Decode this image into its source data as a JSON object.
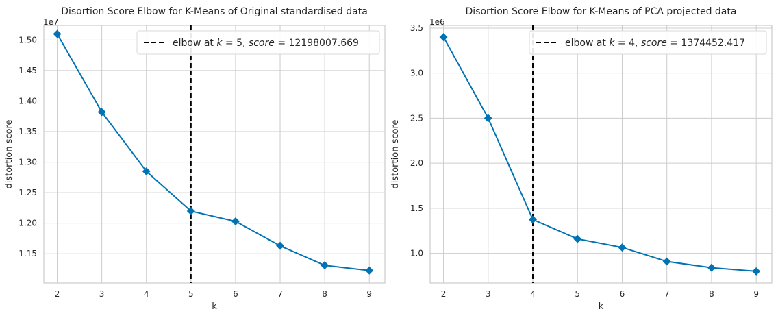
{
  "chart_data": [
    {
      "type": "line",
      "title": "Disortion Score Elbow for K-Means of Original standardised data",
      "xlabel": "k",
      "ylabel": "distortion score",
      "y_scale_label": "1e7",
      "x": [
        2,
        3,
        4,
        5,
        6,
        7,
        8,
        9
      ],
      "series": [
        {
          "values": [
            15100000,
            13820000,
            12850000,
            12198007.669,
            12030000,
            11630000,
            11310000,
            11225000
          ]
        }
      ],
      "xticks": [
        "2",
        "3",
        "4",
        "5",
        "6",
        "7",
        "8",
        "9"
      ],
      "yticks": [
        {
          "value": 11500000,
          "label": "1.15"
        },
        {
          "value": 12000000,
          "label": "1.20"
        },
        {
          "value": 12500000,
          "label": "1.25"
        },
        {
          "value": 13000000,
          "label": "1.30"
        },
        {
          "value": 13500000,
          "label": "1.35"
        },
        {
          "value": 14000000,
          "label": "1.40"
        },
        {
          "value": 14500000,
          "label": "1.45"
        },
        {
          "value": 15000000,
          "label": "1.50"
        }
      ],
      "xlim": [
        1.7,
        9.35
      ],
      "ylim": [
        11020000,
        15240000
      ],
      "elbow": {
        "k": 5,
        "score": "12198007.669"
      },
      "legend": {
        "text_prefix": "elbow at ",
        "k_symbol": "k",
        "score_symbol": "score",
        "position": "top-right"
      },
      "grid": true,
      "color": "#0173b2"
    },
    {
      "type": "line",
      "title": "Disortion Score Elbow for K-Means of PCA projected data",
      "xlabel": "k",
      "ylabel": "distortion score",
      "y_scale_label": "1e6",
      "x": [
        2,
        3,
        4,
        5,
        6,
        7,
        8,
        9
      ],
      "series": [
        {
          "values": [
            3400000,
            2500000,
            1374452.417,
            1160000,
            1065000,
            910000,
            840000,
            800000
          ]
        }
      ],
      "xticks": [
        "2",
        "3",
        "4",
        "5",
        "6",
        "7",
        "8",
        "9"
      ],
      "yticks": [
        {
          "value": 1000000,
          "label": "1.0"
        },
        {
          "value": 1500000,
          "label": "1.5"
        },
        {
          "value": 2000000,
          "label": "2.0"
        },
        {
          "value": 2500000,
          "label": "2.5"
        },
        {
          "value": 3000000,
          "label": "3.0"
        },
        {
          "value": 3500000,
          "label": "3.5"
        }
      ],
      "xlim": [
        1.7,
        9.35
      ],
      "ylim": [
        670000,
        3530000
      ],
      "elbow": {
        "k": 4,
        "score": "1374452.417"
      },
      "legend": {
        "text_prefix": "elbow at ",
        "k_symbol": "k",
        "score_symbol": "score",
        "position": "top-right"
      },
      "grid": true,
      "color": "#0173b2"
    }
  ]
}
